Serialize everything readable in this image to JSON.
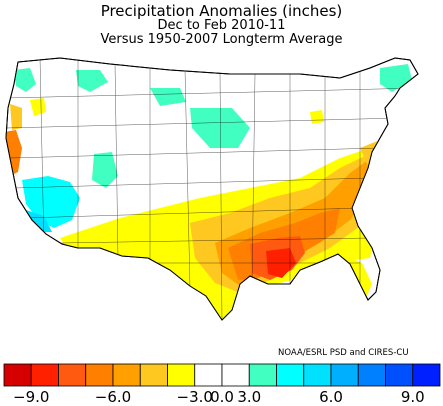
{
  "header": {
    "title": "Precipitation Anomalies (inches)",
    "subtitle": "Dec to Feb 2010-11",
    "baseline": "Versus 1950-2007 Longterm Average"
  },
  "credit": "NOAA/ESRL PSD and CIRES-CU",
  "legend": {
    "colors": [
      "#d70000",
      "#ff2000",
      "#ff5a10",
      "#ff8000",
      "#ffa000",
      "#ffc820",
      "#ffff00",
      "#ffffff",
      "#ffffff",
      "#40ffc0",
      "#00ffff",
      "#00e0ff",
      "#00b0ff",
      "#0080ff",
      "#0050ff",
      "#0020ff"
    ],
    "tick_labels": [
      "-9.0",
      "-6.0",
      "-3.0",
      "0.0",
      "3.0",
      "6.0",
      "9.0"
    ]
  },
  "map_colors": {
    "dry_extreme": "#ff2000",
    "dry_strong": "#ff5a10",
    "dry_moderate": "#ff8000",
    "dry_mild": "#ffa000",
    "dry_light": "#ffc820",
    "dry_slight": "#ffff00",
    "wet_slight": "#40ffc0",
    "wet_light": "#00ffff",
    "wet_moderate": "#00b0ff",
    "normal": "#ffffff"
  }
}
